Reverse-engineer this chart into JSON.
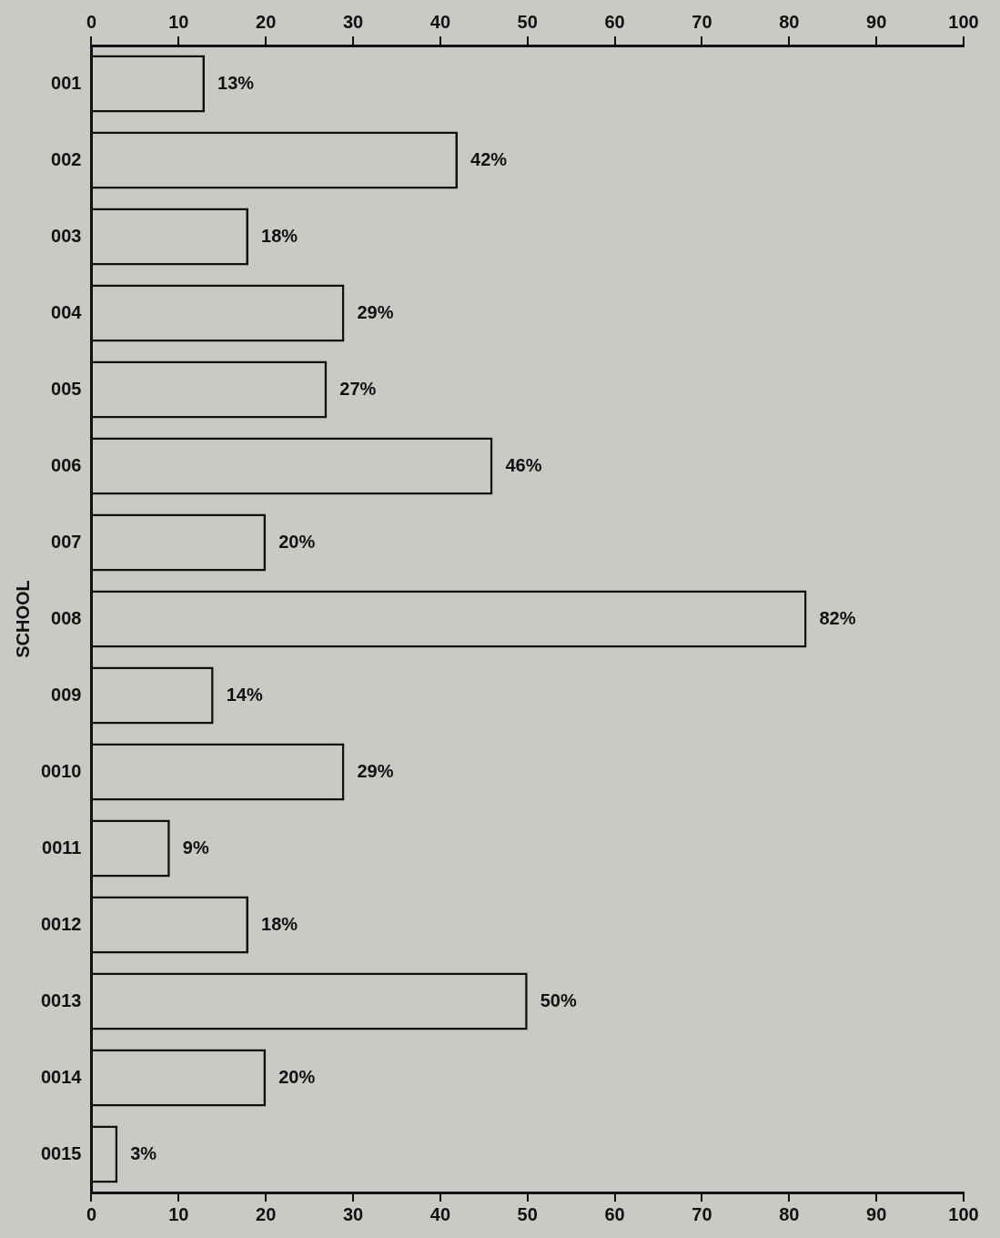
{
  "chart_data": {
    "type": "bar",
    "orientation": "horizontal",
    "ylabel": "SCHOOL",
    "categories": [
      "001",
      "002",
      "003",
      "004",
      "005",
      "006",
      "007",
      "008",
      "009",
      "0010",
      "0011",
      "0012",
      "0013",
      "0014",
      "0015"
    ],
    "values": [
      13,
      42,
      18,
      29,
      27,
      46,
      20,
      82,
      14,
      29,
      9,
      18,
      50,
      20,
      3
    ],
    "value_labels": [
      "13%",
      "42%",
      "18%",
      "29%",
      "27%",
      "46%",
      "20%",
      "82%",
      "14%",
      "29%",
      "9%",
      "18%",
      "50%",
      "20%",
      "3%"
    ],
    "color": "#111111",
    "xlim": [
      0,
      100
    ],
    "xticks": [
      0,
      10,
      20,
      30,
      40,
      50,
      60,
      70,
      80,
      90,
      100
    ],
    "x2lim": [
      0,
      100
    ],
    "x2ticks": [
      0,
      10,
      20,
      30,
      40,
      50,
      60,
      70,
      80,
      90,
      100
    ],
    "grid": false,
    "legend": false
  }
}
